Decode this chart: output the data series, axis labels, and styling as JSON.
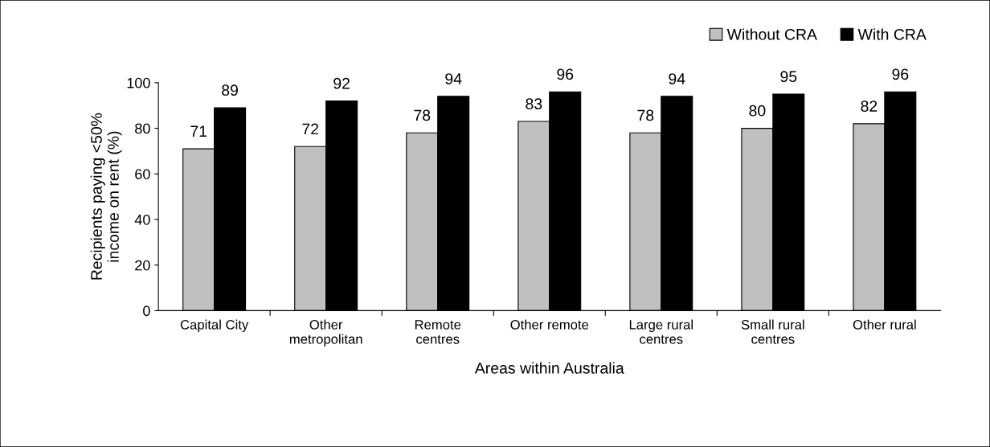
{
  "chart_data": {
    "type": "bar",
    "xlabel": "Areas within Australia",
    "ylabel": "Recipients paying <50%\nincome on rent (%)",
    "categories": [
      "Capital City",
      "Other\nmetropolitan",
      "Remote\ncentres",
      "Other remote",
      "Large rural\ncentres",
      "Small rural\ncentres",
      "Other rural"
    ],
    "series": [
      {
        "name": "Without CRA",
        "color": "#c0c0c0",
        "values": [
          71,
          72,
          78,
          83,
          78,
          80,
          82
        ]
      },
      {
        "name": "With CRA",
        "color": "#000000",
        "values": [
          89,
          92,
          94,
          96,
          94,
          95,
          96
        ]
      }
    ],
    "ylim": [
      0,
      100
    ],
    "yticks": [
      0,
      20,
      40,
      60,
      80,
      100
    ],
    "data_labels": true,
    "legend": "top right",
    "grid": false
  }
}
